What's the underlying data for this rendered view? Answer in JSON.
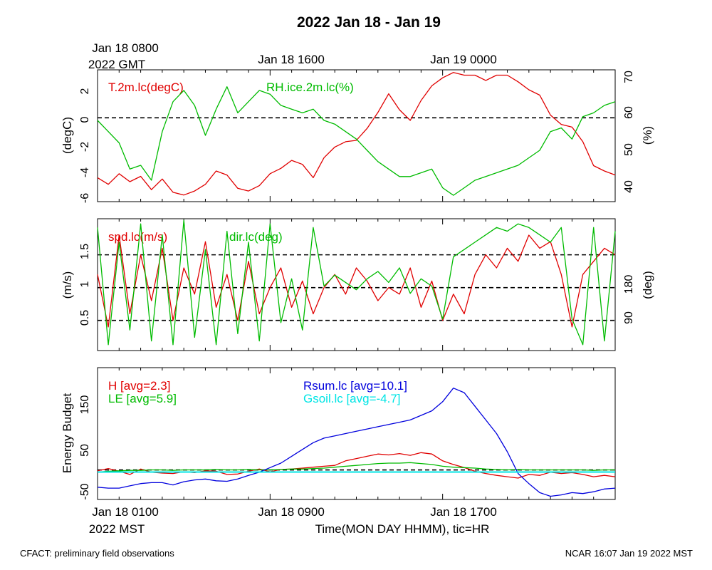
{
  "title": "2022 Jan 18 - Jan 19",
  "top_axis": {
    "first_label_line1": "Jan 18 0800",
    "first_label_line2": "2022 GMT",
    "labels": [
      "Jan 18 1600",
      "Jan 19 0000"
    ]
  },
  "bottom_axis": {
    "first_label_line1": "Jan 18 0100",
    "first_label_line2": "2022 MST",
    "labels": [
      "Jan 18 0900",
      "Jan 18 1700"
    ],
    "xlabel": "Time(MON DAY HHMM), tic=HR"
  },
  "footer": {
    "left": "CFACT: preliminary field observations",
    "right": "NCAR 16:07 Jan 19 2022 MST"
  },
  "colors": {
    "red": "#e00000",
    "green": "#00bb00",
    "blue": "#0000dd",
    "cyan": "#00e5e5"
  },
  "chart_data": [
    {
      "type": "line",
      "panel": "temperature-humidity",
      "x_range_hours": [
        0,
        24
      ],
      "ylabel_left": "(degC)",
      "ylabel_right": "(%)",
      "yticks_left": [
        "2",
        "0",
        "-2",
        "-4",
        "-6"
      ],
      "yticks_right": [
        "70",
        "60",
        "50",
        "40"
      ],
      "ylim_left": [
        -6.3,
        3.6
      ],
      "ylim_right": [
        36.3,
        71.5
      ],
      "reference_lines": [
        0
      ],
      "series": [
        {
          "name": "T.2m.lc(degC)",
          "axis": "left",
          "color": "#e00000",
          "x": [
            0,
            0.5,
            1,
            1.5,
            2,
            2.5,
            3,
            3.5,
            4,
            4.5,
            5,
            5.5,
            6,
            6.5,
            7,
            7.5,
            8,
            8.5,
            9,
            9.5,
            10,
            10.5,
            11,
            11.5,
            12,
            12.5,
            13,
            13.5,
            14,
            14.5,
            15,
            15.5,
            16,
            16.5,
            17,
            17.5,
            18,
            18.5,
            19,
            19.5,
            20,
            20.5,
            21,
            21.5,
            22,
            22.5,
            23,
            23.5,
            24
          ],
          "values": [
            -4.5,
            -5,
            -4.2,
            -4.8,
            -4.4,
            -5.4,
            -4.6,
            -5.6,
            -5.8,
            -5.5,
            -5,
            -4,
            -4.3,
            -5.3,
            -5.5,
            -5.1,
            -4.2,
            -3.8,
            -3.2,
            -3.5,
            -4.5,
            -3,
            -2.2,
            -1.8,
            -1.7,
            -0.8,
            0.4,
            1.8,
            0.6,
            -0.2,
            1.3,
            2.4,
            3,
            3.4,
            3.2,
            3.2,
            2.8,
            3.2,
            3.2,
            2.7,
            2.1,
            1.7,
            0.2,
            -0.5,
            -0.7,
            -1.8,
            -3.6,
            -4,
            -4.3
          ]
        },
        {
          "name": "RH.ice.2m.lc(%)",
          "axis": "right",
          "color": "#00bb00",
          "x": [
            0,
            0.5,
            1,
            1.5,
            2,
            2.5,
            3,
            3.5,
            4,
            4.5,
            5,
            5.5,
            6,
            6.5,
            7,
            7.5,
            8,
            8.5,
            9,
            9.5,
            10,
            10.5,
            11,
            11.5,
            12,
            12.5,
            13,
            13.5,
            14,
            14.5,
            15,
            15.5,
            16,
            16.5,
            17,
            17.5,
            18,
            18.5,
            19,
            19.5,
            20,
            20.5,
            21,
            21.5,
            22,
            22.5,
            23,
            23.5,
            24
          ],
          "values": [
            58,
            55,
            52,
            45,
            46,
            42,
            55,
            63,
            66,
            62,
            54,
            61,
            67,
            60,
            63,
            66,
            65,
            62,
            61,
            60,
            61,
            58,
            57,
            55,
            53,
            50,
            47,
            45,
            43,
            43,
            44,
            45,
            40,
            38,
            40,
            42,
            43,
            44,
            45,
            46,
            48,
            50,
            55,
            56,
            53,
            59,
            60,
            62,
            63
          ]
        }
      ]
    },
    {
      "type": "line",
      "panel": "wind",
      "x_range_hours": [
        0,
        24
      ],
      "ylabel_left": "(m/s)",
      "ylabel_right": "(deg)",
      "yticks_left": [
        "1.5",
        "1",
        "0.5"
      ],
      "yticks_right": [
        "180",
        "90"
      ],
      "ylim_left": [
        0.04,
        2.05
      ],
      "ylim_right": [
        4,
        364
      ],
      "reference_lines": [
        1.5,
        1.0,
        0.5
      ],
      "series": [
        {
          "name": "spd.lc(m/s)",
          "axis": "left",
          "color": "#e00000",
          "x": [
            0,
            0.5,
            1,
            1.5,
            2,
            2.5,
            3,
            3.5,
            4,
            4.5,
            5,
            5.5,
            6,
            6.5,
            7,
            7.5,
            8,
            8.5,
            9,
            9.5,
            10,
            10.5,
            11,
            11.5,
            12,
            12.5,
            13,
            13.5,
            14,
            14.5,
            15,
            15.5,
            16,
            16.5,
            17,
            17.5,
            18,
            18.5,
            19,
            19.5,
            20,
            20.5,
            21,
            21.5,
            22,
            22.5,
            23,
            23.5,
            24
          ],
          "values": [
            1.2,
            0.4,
            1.8,
            0.6,
            1.5,
            0.8,
            1.6,
            0.5,
            1.3,
            0.9,
            1.7,
            0.7,
            1.2,
            0.5,
            1.4,
            0.6,
            1.0,
            1.3,
            0.7,
            1.1,
            0.6,
            1.0,
            1.2,
            0.9,
            1.3,
            1.1,
            0.8,
            1.0,
            0.9,
            1.3,
            0.7,
            1.1,
            0.5,
            0.9,
            0.6,
            1.2,
            1.5,
            1.3,
            1.6,
            1.4,
            1.8,
            1.6,
            1.7,
            1.2,
            0.4,
            1.2,
            1.4,
            1.6,
            1.5
          ]
        },
        {
          "name": "dir.lc(deg)",
          "axis": "right",
          "color": "#00bb00",
          "x": [
            0,
            0.5,
            1,
            1.5,
            2,
            2.5,
            3,
            3.5,
            4,
            4.5,
            5,
            5.5,
            6,
            6.5,
            7,
            7.5,
            8,
            8.5,
            9,
            9.5,
            10,
            10.5,
            11,
            11.5,
            12,
            12.5,
            13,
            13.5,
            14,
            14.5,
            15,
            15.5,
            16,
            16.5,
            17,
            17.5,
            18,
            18.5,
            19,
            19.5,
            20,
            20.5,
            21,
            21.5,
            22,
            22.5,
            23,
            23.5,
            24
          ],
          "values": [
            340,
            20,
            300,
            60,
            350,
            30,
            320,
            20,
            360,
            40,
            280,
            20,
            330,
            50,
            300,
            30,
            350,
            80,
            200,
            60,
            340,
            180,
            210,
            190,
            170,
            200,
            220,
            190,
            230,
            160,
            200,
            180,
            90,
            260,
            280,
            300,
            320,
            340,
            330,
            350,
            340,
            320,
            300,
            340,
            90,
            20,
            340,
            30,
            330
          ]
        }
      ]
    },
    {
      "type": "line",
      "panel": "energy-budget",
      "x_range_hours": [
        0,
        24
      ],
      "ylabel": "Energy Budget",
      "yticks": [
        "150",
        "50",
        "-50"
      ],
      "ylim": [
        -65,
        225
      ],
      "reference_lines": [
        0
      ],
      "series": [
        {
          "name": "H [avg=2.3]",
          "color": "#e00000",
          "x": [
            0,
            0.5,
            1,
            1.5,
            2,
            2.5,
            3,
            3.5,
            4,
            4.5,
            5,
            5.5,
            6,
            6.5,
            7,
            7.5,
            8,
            8.5,
            9,
            9.5,
            10,
            10.5,
            11,
            11.5,
            12,
            12.5,
            13,
            13.5,
            14,
            14.5,
            15,
            15.5,
            16,
            16.5,
            17,
            17.5,
            18,
            18.5,
            19,
            19.5,
            20,
            20.5,
            21,
            21.5,
            22,
            22.5,
            23,
            23.5,
            24
          ],
          "values": [
            -2,
            3,
            -3,
            -10,
            2,
            -5,
            -7,
            -8,
            -4,
            -6,
            -2,
            -3,
            -10,
            -9,
            -3,
            2,
            -4,
            1,
            2,
            4,
            6,
            8,
            10,
            20,
            25,
            30,
            35,
            33,
            36,
            32,
            38,
            35,
            20,
            12,
            5,
            -3,
            -8,
            -12,
            -15,
            -18,
            -10,
            -12,
            -5,
            -8,
            -6,
            -10,
            -15,
            -12,
            -15
          ]
        },
        {
          "name": "LE [avg=5.9]",
          "color": "#00bb00",
          "x": [
            0,
            0.5,
            1,
            1.5,
            2,
            2.5,
            3,
            3.5,
            4,
            4.5,
            5,
            5.5,
            6,
            6.5,
            7,
            7.5,
            8,
            8.5,
            9,
            9.5,
            10,
            10.5,
            11,
            11.5,
            12,
            12.5,
            13,
            13.5,
            14,
            14.5,
            15,
            15.5,
            16,
            16.5,
            17,
            17.5,
            18,
            18.5,
            19,
            19.5,
            20,
            20.5,
            21,
            21.5,
            22,
            22.5,
            23,
            23.5,
            24
          ],
          "values": [
            -5,
            -3,
            -2,
            -1,
            -1,
            0,
            0,
            -1,
            0,
            0,
            0,
            1,
            0,
            0,
            1,
            0,
            0,
            1,
            2,
            2,
            3,
            4,
            6,
            8,
            10,
            12,
            14,
            15,
            15,
            16,
            14,
            12,
            8,
            6,
            5,
            4,
            2,
            1,
            0,
            1,
            0,
            0,
            0,
            0,
            0,
            0,
            -1,
            0,
            0
          ]
        },
        {
          "name": "Rsum.lc [avg=10.1]",
          "color": "#0000dd",
          "x": [
            0,
            0.5,
            1,
            1.5,
            2,
            2.5,
            3,
            3.5,
            4,
            4.5,
            5,
            5.5,
            6,
            6.5,
            7,
            7.5,
            8,
            8.5,
            9,
            9.5,
            10,
            10.5,
            11,
            11.5,
            12,
            12.5,
            13,
            13.5,
            14,
            14.5,
            15,
            15.5,
            16,
            16.5,
            17,
            17.5,
            18,
            18.5,
            19,
            19.5,
            20,
            20.5,
            21,
            21.5,
            22,
            22.5,
            23,
            23.5,
            24
          ],
          "values": [
            -38,
            -40,
            -40,
            -35,
            -30,
            -28,
            -28,
            -33,
            -26,
            -22,
            -20,
            -24,
            -25,
            -20,
            -12,
            -5,
            5,
            15,
            30,
            45,
            60,
            70,
            75,
            80,
            85,
            90,
            95,
            100,
            105,
            110,
            120,
            130,
            150,
            180,
            170,
            140,
            110,
            80,
            40,
            -8,
            -30,
            -50,
            -58,
            -55,
            -50,
            -52,
            -48,
            -42,
            -40
          ]
        },
        {
          "name": "Gsoil.lc [avg=-4.7]",
          "color": "#00e5e5",
          "x": [
            0,
            24
          ],
          "values": [
            -4.7,
            -4.7
          ]
        }
      ]
    }
  ]
}
